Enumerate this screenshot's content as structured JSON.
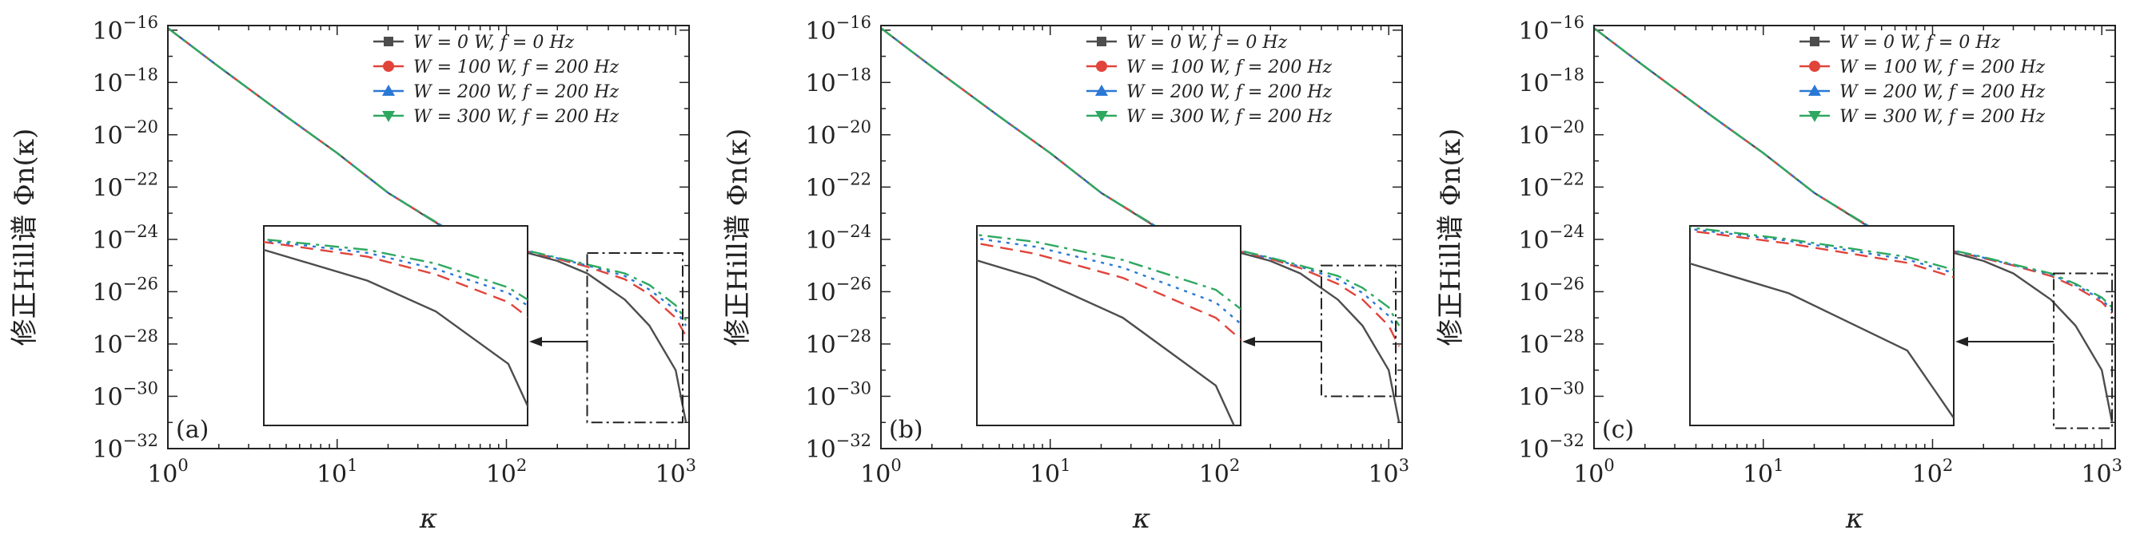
{
  "chart_data": [
    {
      "type": "line",
      "panel_label": "(a)",
      "xlabel": "κ",
      "ylabel": "修正Hill谱 Φn(κ)",
      "xscale": "log",
      "yscale": "log",
      "xlim": [
        1,
        1200
      ],
      "ylim": [
        1e-32,
        1.5e-16
      ],
      "x_ticks": [
        "10^0",
        "10^1",
        "10^2",
        "10^3"
      ],
      "y_ticks": [
        "10^-16",
        "10^-18",
        "10^-20",
        "10^-22",
        "10^-24",
        "10^-26",
        "10^-28",
        "10^-30",
        "10^-32"
      ],
      "legend_position": "top-right",
      "legend": [
        "W = 0 W, f = 0 Hz",
        "W = 100 W, f = 200 Hz",
        "W = 200 W, f = 200 Hz",
        "W = 300 W, f = 200 Hz"
      ],
      "zoom_box": {
        "x": [
          300,
          1100
        ],
        "y": [
          1e-31,
          3e-25
        ]
      },
      "series": [
        {
          "name": "W = 0 W, f = 0 Hz",
          "color": "#4d4d4d",
          "dash": "solid",
          "x": [
            1,
            2,
            5,
            10,
            20,
            50,
            100,
            200,
            300,
            500,
            700,
            1000,
            1150
          ],
          "y": [
            1.2e-16,
            4e-18,
            5e-20,
            2e-21,
            6e-23,
            1.5e-24,
            5e-25,
            1.5e-25,
            5e-26,
            5e-27,
            5e-28,
            1e-29,
            1e-31
          ]
        },
        {
          "name": "W = 100 W, f = 200 Hz",
          "color": "#e0443b",
          "dash": "dashed",
          "x": [
            1,
            2,
            5,
            10,
            20,
            50,
            100,
            200,
            300,
            500,
            700,
            1000,
            1150
          ],
          "y": [
            1.2e-16,
            4e-18,
            5e-20,
            2e-21,
            6e-23,
            1.6e-24,
            5.5e-25,
            1.8e-25,
            9e-26,
            3e-26,
            8e-27,
            1e-27,
            2e-28
          ]
        },
        {
          "name": "W = 200 W, f = 200 Hz",
          "color": "#2a78d6",
          "dash": "dotted",
          "x": [
            1,
            2,
            5,
            10,
            20,
            50,
            100,
            200,
            300,
            500,
            700,
            1000,
            1150
          ],
          "y": [
            1.2e-16,
            4e-18,
            5e-20,
            2e-21,
            6e-23,
            1.6e-24,
            5.6e-25,
            1.9e-25,
            1e-25,
            4e-26,
            1.2e-26,
            2e-27,
            5e-28
          ]
        },
        {
          "name": "W = 300 W, f = 200 Hz",
          "color": "#2ea860",
          "dash": "dashdot",
          "x": [
            1,
            2,
            5,
            10,
            20,
            50,
            100,
            200,
            300,
            500,
            700,
            1000,
            1150
          ],
          "y": [
            1.2e-16,
            4e-18,
            5e-20,
            2e-21,
            6e-23,
            1.6e-24,
            5.7e-25,
            2e-25,
            1.1e-25,
            5e-26,
            1.8e-26,
            3e-27,
            8e-28
          ]
        }
      ]
    },
    {
      "type": "line",
      "panel_label": "(b)",
      "xlabel": "κ",
      "ylabel": "修正Hill谱 Φn(κ)",
      "xscale": "log",
      "yscale": "log",
      "xlim": [
        1,
        1200
      ],
      "ylim": [
        1e-32,
        1.5e-16
      ],
      "x_ticks": [
        "10^0",
        "10^1",
        "10^2",
        "10^3"
      ],
      "y_ticks": [
        "10^-16",
        "10^-18",
        "10^-20",
        "10^-22",
        "10^-24",
        "10^-26",
        "10^-28",
        "10^-30",
        "10^-32"
      ],
      "legend_position": "top-right",
      "legend": [
        "W = 0 W, f = 0 Hz",
        "W = 100 W, f = 200 Hz",
        "W = 200 W, f = 200 Hz",
        "W = 300 W, f = 200 Hz"
      ],
      "zoom_box": {
        "x": [
          400,
          1100
        ],
        "y": [
          1e-30,
          1e-25
        ]
      },
      "series": [
        {
          "name": "W = 0 W, f = 0 Hz",
          "color": "#4d4d4d",
          "dash": "solid",
          "x": [
            1,
            2,
            5,
            10,
            20,
            50,
            100,
            200,
            300,
            500,
            700,
            1000,
            1150
          ],
          "y": [
            1.2e-16,
            4e-18,
            5e-20,
            2e-21,
            6e-23,
            1.5e-24,
            5e-25,
            1.5e-25,
            5e-26,
            5e-27,
            5e-28,
            1e-29,
            1e-31
          ]
        },
        {
          "name": "W = 100 W, f = 200 Hz",
          "color": "#e0443b",
          "dash": "dashed",
          "x": [
            1,
            2,
            5,
            10,
            20,
            50,
            100,
            200,
            300,
            500,
            700,
            1000,
            1150
          ],
          "y": [
            1.2e-16,
            4e-18,
            5e-20,
            2e-21,
            6e-23,
            1.6e-24,
            5.5e-25,
            1.8e-25,
            8e-26,
            2e-26,
            5e-27,
            5e-28,
            8e-29
          ]
        },
        {
          "name": "W = 200 W, f = 200 Hz",
          "color": "#2a78d6",
          "dash": "dotted",
          "x": [
            1,
            2,
            5,
            10,
            20,
            50,
            100,
            200,
            300,
            500,
            700,
            1000,
            1150
          ],
          "y": [
            1.2e-16,
            4e-18,
            5e-20,
            2e-21,
            6e-23,
            1.6e-24,
            5.6e-25,
            1.9e-25,
            9e-26,
            3e-26,
            9e-27,
            1.2e-27,
            2e-28
          ]
        },
        {
          "name": "W = 300 W, f = 200 Hz",
          "color": "#2ea860",
          "dash": "dashdot",
          "x": [
            1,
            2,
            5,
            10,
            20,
            50,
            100,
            200,
            300,
            500,
            700,
            1000,
            1150
          ],
          "y": [
            1.2e-16,
            4e-18,
            5e-20,
            2e-21,
            6e-23,
            1.6e-24,
            5.7e-25,
            2e-25,
            1e-25,
            4e-26,
            1.4e-26,
            2.5e-27,
            5e-28
          ]
        }
      ]
    },
    {
      "type": "line",
      "panel_label": "(c)",
      "xlabel": "κ",
      "ylabel": "修正Hill谱 Φn(κ)",
      "xscale": "log",
      "yscale": "log",
      "xlim": [
        1,
        1200
      ],
      "ylim": [
        1e-32,
        1.5e-16
      ],
      "x_ticks": [
        "10^0",
        "10^1",
        "10^2",
        "10^3"
      ],
      "y_ticks": [
        "10^-16",
        "10^-18",
        "10^-20",
        "10^-22",
        "10^-24",
        "10^-26",
        "10^-28",
        "10^-30",
        "10^-32"
      ],
      "legend_position": "top-right",
      "legend": [
        "W = 0 W, f = 0 Hz",
        "W = 100 W, f = 200 Hz",
        "W = 200 W, f = 200 Hz",
        "W = 300 W, f = 200 Hz"
      ],
      "zoom_box": {
        "x": [
          520,
          1150
        ],
        "y": [
          6e-32,
          5e-26
        ]
      },
      "series": [
        {
          "name": "W = 0 W, f = 0 Hz",
          "color": "#4d4d4d",
          "dash": "solid",
          "x": [
            1,
            2,
            5,
            10,
            20,
            50,
            100,
            200,
            300,
            500,
            700,
            1000,
            1150
          ],
          "y": [
            1.2e-16,
            4e-18,
            5e-20,
            2e-21,
            6e-23,
            1.5e-24,
            5e-25,
            1.5e-25,
            5e-26,
            5e-27,
            5e-28,
            1e-29,
            1e-31
          ]
        },
        {
          "name": "W = 100 W, f = 200 Hz",
          "color": "#e0443b",
          "dash": "dashed",
          "x": [
            1,
            2,
            5,
            10,
            20,
            50,
            100,
            200,
            300,
            500,
            700,
            1000,
            1150
          ],
          "y": [
            1.2e-16,
            4e-18,
            5e-20,
            2e-21,
            6e-23,
            1.6e-24,
            5.5e-25,
            1.9e-25,
            1e-25,
            4e-26,
            1.5e-26,
            4e-27,
            1.5e-27
          ]
        },
        {
          "name": "W = 200 W, f = 200 Hz",
          "color": "#2a78d6",
          "dash": "dotted",
          "x": [
            1,
            2,
            5,
            10,
            20,
            50,
            100,
            200,
            300,
            500,
            700,
            1000,
            1150
          ],
          "y": [
            1.2e-16,
            4e-18,
            5e-20,
            2e-21,
            6e-23,
            1.6e-24,
            5.6e-25,
            2e-25,
            1.05e-25,
            4.5e-26,
            1.8e-26,
            5e-27,
            2e-27
          ]
        },
        {
          "name": "W = 300 W, f = 200 Hz",
          "color": "#2ea860",
          "dash": "dashdot",
          "x": [
            1,
            2,
            5,
            10,
            20,
            50,
            100,
            200,
            300,
            500,
            700,
            1000,
            1150
          ],
          "y": [
            1.2e-16,
            4e-18,
            5e-20,
            2e-21,
            6e-23,
            1.6e-24,
            5.7e-25,
            2.1e-25,
            1.1e-25,
            5e-26,
            2e-26,
            6e-27,
            2.5e-27
          ]
        }
      ]
    }
  ]
}
